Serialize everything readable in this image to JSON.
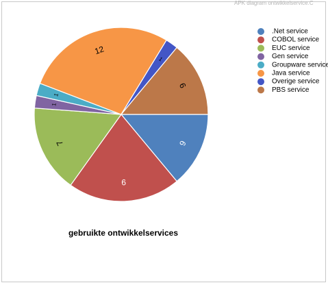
{
  "header": {
    "caption": "APK diagram ontwikkelservice.C"
  },
  "chart_data": {
    "type": "pie",
    "title": "gebruikte ontwikkelservices",
    "start_angle_deg": 0,
    "direction": "clockwise",
    "legend_position": "right",
    "slices": [
      {
        "label": ".Net service",
        "value": 6,
        "color": "#4f81bd"
      },
      {
        "label": "COBOL service",
        "value": 9,
        "color": "#c0504d"
      },
      {
        "label": "EUC service",
        "value": 7,
        "color": "#9bbb59"
      },
      {
        "label": "Gen service",
        "value": 1,
        "color": "#8064a2"
      },
      {
        "label": "Groupware service",
        "value": 1,
        "color": "#4bacc6"
      },
      {
        "label": "Java service",
        "value": 12,
        "color": "#f79646"
      },
      {
        "label": "Overige service",
        "value": 1,
        "color": "#4356c6"
      },
      {
        "label": "PBS service",
        "value": 6,
        "color": "#bc7849"
      }
    ]
  }
}
